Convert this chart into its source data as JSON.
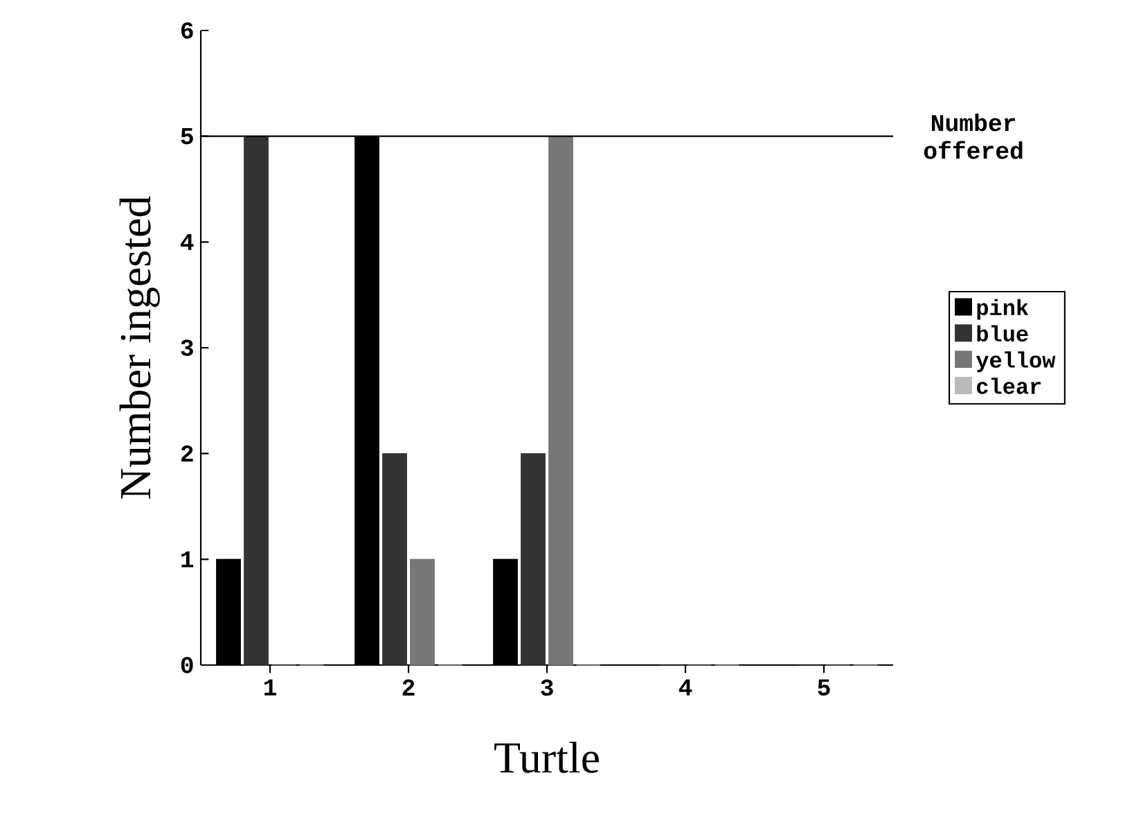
{
  "chart_data": {
    "type": "bar",
    "xlabel": "Turtle",
    "ylabel": "Number ingested",
    "categories": [
      "1",
      "2",
      "3",
      "4",
      "5"
    ],
    "series": [
      {
        "name": "pink",
        "color": "#000000",
        "values": [
          1,
          5,
          1,
          0,
          0
        ]
      },
      {
        "name": "blue",
        "color": "#333333",
        "values": [
          5,
          2,
          2,
          0,
          0
        ]
      },
      {
        "name": "yellow",
        "color": "#777777",
        "values": [
          0,
          1,
          5,
          0,
          0
        ]
      },
      {
        "name": "clear",
        "color": "#bbbbbb",
        "values": [
          0,
          0,
          0,
          0,
          0
        ]
      }
    ],
    "ylim": [
      0,
      6
    ],
    "yticks": [
      0,
      1,
      2,
      3,
      4,
      5,
      6
    ],
    "ref_lines": [
      {
        "axis": "y",
        "value": 5,
        "label": "Number offered",
        "color": "#000000"
      }
    ],
    "legend": "right",
    "grid": false
  }
}
